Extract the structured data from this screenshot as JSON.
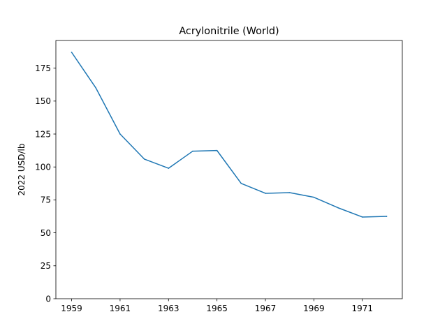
{
  "chart_data": {
    "type": "line",
    "title": "Acrylonitrile (World)",
    "xlabel": "",
    "ylabel": "2022 USD/lb",
    "xlim": [
      1958.35,
      1972.65
    ],
    "ylim": [
      0,
      196
    ],
    "xticks": [
      1959,
      1961,
      1963,
      1965,
      1967,
      1969,
      1971
    ],
    "yticks": [
      0,
      25,
      50,
      75,
      100,
      125,
      150,
      175
    ],
    "grid": false,
    "legend": "none",
    "series": [
      {
        "color": "#1f77b4",
        "x": [
          1959,
          1960,
          1961,
          1962,
          1963,
          1964,
          1965,
          1966,
          1967,
          1968,
          1969,
          1970,
          1971,
          1972
        ],
        "y": [
          187.0,
          160.0,
          125.0,
          106.0,
          99.0,
          112.0,
          112.5,
          87.5,
          80.0,
          80.5,
          77.0,
          69.0,
          62.0,
          62.5
        ]
      }
    ]
  }
}
